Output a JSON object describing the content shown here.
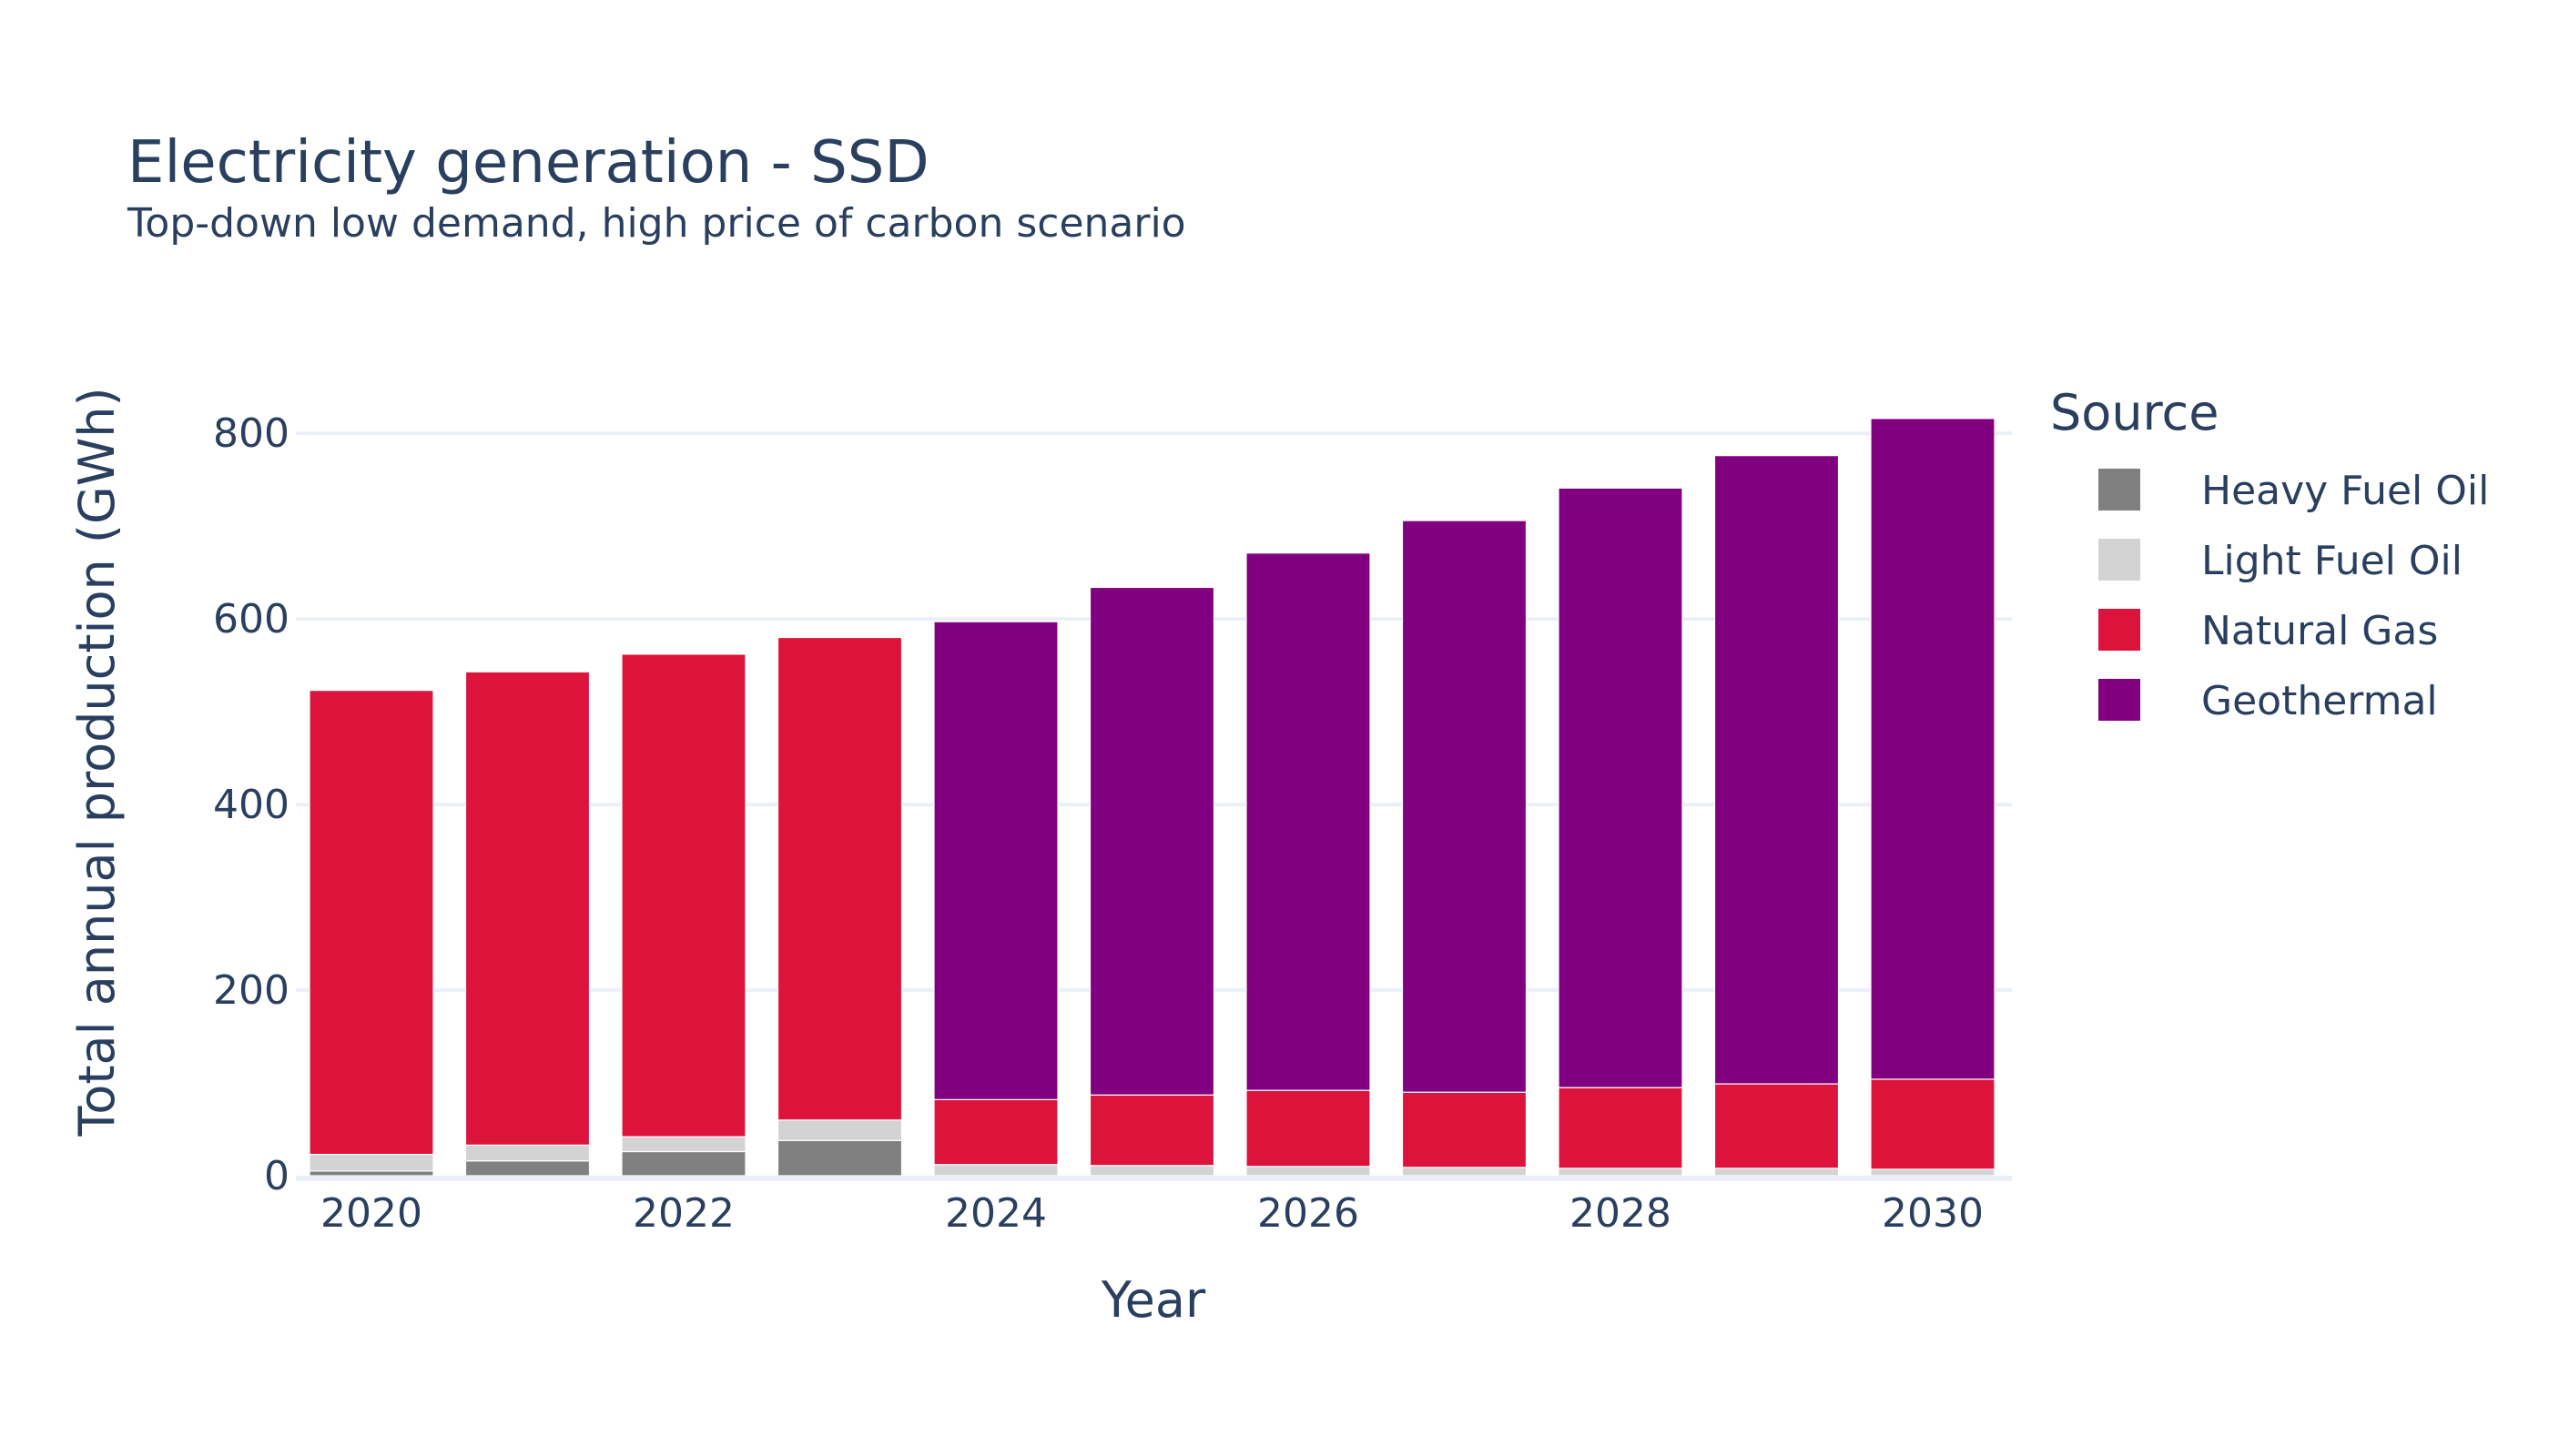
{
  "chart_data": {
    "type": "bar",
    "stacked": true,
    "title": "Electricity generation - SSD",
    "subtitle": "Top-down low demand, high price of carbon scenario",
    "xlabel": "Year",
    "ylabel": "Total annual production (GWh)",
    "categories": [
      2020,
      2021,
      2022,
      2023,
      2024,
      2025,
      2026,
      2027,
      2028,
      2029,
      2030
    ],
    "x_ticks": [
      "2020",
      "2022",
      "2024",
      "2026",
      "2028",
      "2030"
    ],
    "y_ticks": [
      "0",
      "200",
      "400",
      "600",
      "800"
    ],
    "ylim": [
      0,
      860
    ],
    "grid": true,
    "legend_title": "Source",
    "legend_position": "right",
    "series": [
      {
        "name": "Heavy Fuel Oil",
        "color": "#808080",
        "values": [
          5,
          16,
          26,
          38,
          0,
          0,
          0,
          0,
          0,
          0,
          0
        ]
      },
      {
        "name": "Light Fuel Oil",
        "color": "#d3d3d3",
        "values": [
          18,
          17,
          16,
          22,
          12,
          11,
          10,
          9,
          8,
          8,
          7
        ]
      },
      {
        "name": "Natural Gas",
        "color": "#dc143c",
        "values": [
          500,
          510,
          520,
          520,
          70,
          76,
          82,
          81,
          87,
          91,
          97
        ]
      },
      {
        "name": "Geothermal",
        "color": "#800080",
        "values": [
          0,
          0,
          0,
          0,
          515,
          547,
          579,
          616,
          646,
          677,
          712
        ]
      }
    ]
  }
}
